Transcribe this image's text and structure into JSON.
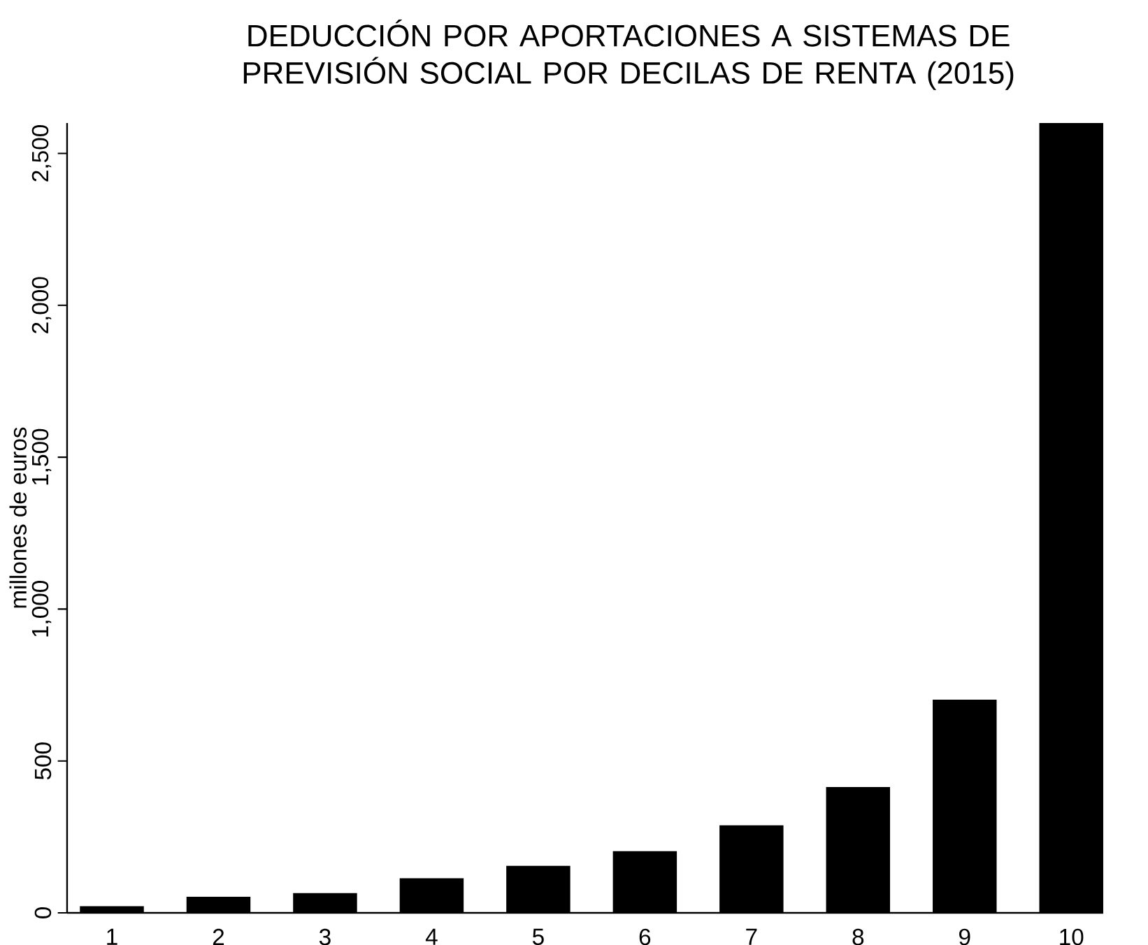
{
  "chart_data": {
    "type": "bar",
    "title": "DEDUCCIÓN POR APORTACIONES A SISTEMAS DE\nPREVISIÓN SOCIAL POR DECILAS DE RENTA (2015)",
    "ylabel": "millones de euros",
    "categories": [
      "1",
      "2",
      "3",
      "4",
      "5",
      "6",
      "7",
      "8",
      "9",
      "10"
    ],
    "values": [
      22,
      53,
      65,
      114,
      155,
      203,
      288,
      414,
      702,
      2600
    ],
    "color": "#000000",
    "ylim": [
      0,
      2600
    ],
    "yticks": [
      0,
      500,
      {
        "value": 1000,
        "label": "1,000"
      },
      {
        "value": 1500,
        "label": "1,500"
      },
      {
        "value": 2000,
        "label": "2,000"
      },
      {
        "value": 2500,
        "label": "2,500"
      }
    ]
  }
}
